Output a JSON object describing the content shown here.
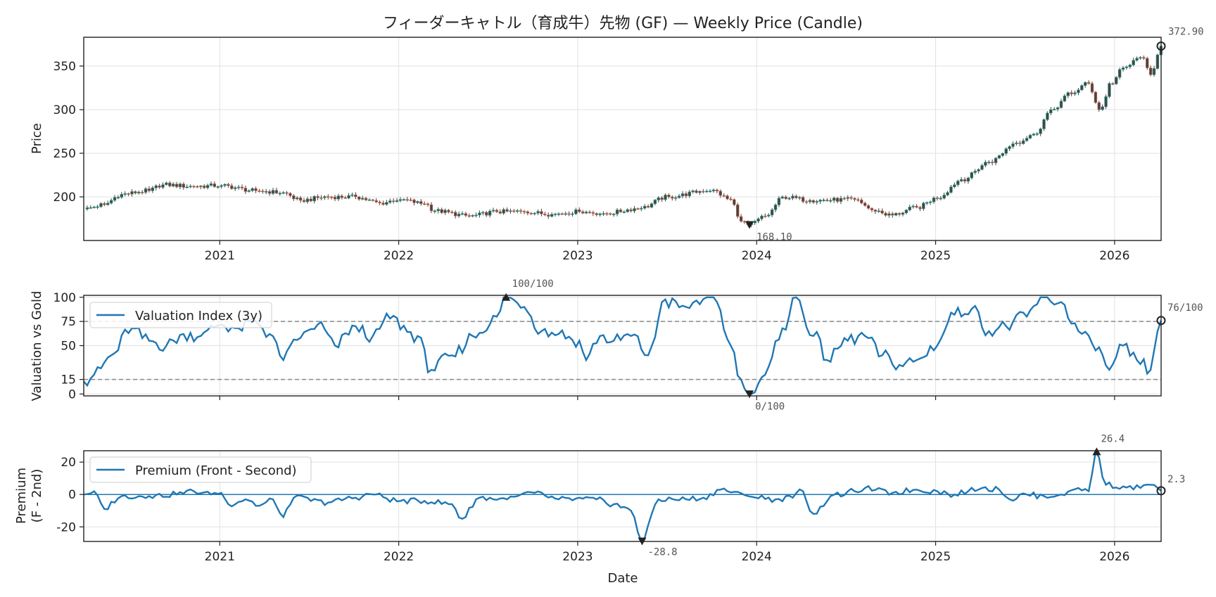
{
  "chart_data": [
    {
      "type": "candlestick",
      "title": "フィーダーキャトル（育成牛）先物 (GF) — Weekly Price (Candle)",
      "ylabel": "Price",
      "xlabel": "",
      "x_range": [
        2020.24,
        2026.26
      ],
      "ylim": [
        150,
        383
      ],
      "y_ticks": [
        200,
        250,
        300,
        350
      ],
      "x_ticks": [
        "2021",
        "2022",
        "2023",
        "2024",
        "2025",
        "2026"
      ],
      "grid": true,
      "anchors": [
        [
          2020.24,
          186
        ],
        [
          2020.35,
          191
        ],
        [
          2020.45,
          203
        ],
        [
          2020.6,
          207
        ],
        [
          2020.68,
          214
        ],
        [
          2020.85,
          212
        ],
        [
          2021.0,
          213
        ],
        [
          2021.2,
          207
        ],
        [
          2021.35,
          205
        ],
        [
          2021.45,
          196
        ],
        [
          2021.6,
          200
        ],
        [
          2021.75,
          200
        ],
        [
          2021.9,
          193
        ],
        [
          2022.0,
          197
        ],
        [
          2022.15,
          192
        ],
        [
          2022.2,
          184
        ],
        [
          2022.4,
          178
        ],
        [
          2022.55,
          183
        ],
        [
          2022.7,
          183
        ],
        [
          2022.85,
          180
        ],
        [
          2023.0,
          183
        ],
        [
          2023.15,
          181
        ],
        [
          2023.35,
          187
        ],
        [
          2023.5,
          200
        ],
        [
          2023.75,
          208
        ],
        [
          2023.85,
          197
        ],
        [
          2023.92,
          172
        ],
        [
          2023.96,
          168.1
        ],
        [
          2024.05,
          178
        ],
        [
          2024.15,
          200
        ],
        [
          2024.3,
          196
        ],
        [
          2024.55,
          197
        ],
        [
          2024.65,
          185
        ],
        [
          2024.75,
          179
        ],
        [
          2024.9,
          188
        ],
        [
          2025.0,
          198
        ],
        [
          2025.15,
          220
        ],
        [
          2025.3,
          240
        ],
        [
          2025.45,
          262
        ],
        [
          2025.55,
          272
        ],
        [
          2025.65,
          300
        ],
        [
          2025.75,
          318
        ],
        [
          2025.85,
          330
        ],
        [
          2025.92,
          300
        ],
        [
          2025.98,
          330
        ],
        [
          2026.05,
          348
        ],
        [
          2026.15,
          360
        ],
        [
          2026.2,
          340
        ],
        [
          2026.26,
          372.9
        ]
      ],
      "annotations": [
        {
          "label": "168.10",
          "x": 2023.96,
          "y": 168.1,
          "marker": "min"
        },
        {
          "label": "372.90",
          "x": 2026.26,
          "y": 372.9,
          "marker": "last"
        }
      ]
    },
    {
      "type": "line",
      "series_name": "Valuation Index (3y)",
      "ylabel": "Valuation vs Gold",
      "x_range": [
        2020.24,
        2026.26
      ],
      "ylim": [
        -2,
        102
      ],
      "y_ticks": [
        0,
        15,
        50,
        75,
        100
      ],
      "reference_lines": [
        75,
        15
      ],
      "legend": "upper-left",
      "grid": true,
      "anchors": [
        [
          2020.24,
          13
        ],
        [
          2020.3,
          20
        ],
        [
          2020.4,
          40
        ],
        [
          2020.5,
          68
        ],
        [
          2020.6,
          55
        ],
        [
          2020.7,
          50
        ],
        [
          2020.8,
          62
        ],
        [
          2020.9,
          60
        ],
        [
          2021.0,
          72
        ],
        [
          2021.1,
          68
        ],
        [
          2021.2,
          75
        ],
        [
          2021.28,
          62
        ],
        [
          2021.35,
          35
        ],
        [
          2021.45,
          58
        ],
        [
          2021.55,
          72
        ],
        [
          2021.65,
          50
        ],
        [
          2021.75,
          70
        ],
        [
          2021.85,
          60
        ],
        [
          2021.95,
          78
        ],
        [
          2022.1,
          60
        ],
        [
          2022.18,
          25
        ],
        [
          2022.3,
          40
        ],
        [
          2022.42,
          60
        ],
        [
          2022.5,
          72
        ],
        [
          2022.55,
          80
        ],
        [
          2022.6,
          100
        ],
        [
          2022.7,
          90
        ],
        [
          2022.8,
          65
        ],
        [
          2022.9,
          62
        ],
        [
          2023.0,
          55
        ],
        [
          2023.05,
          35
        ],
        [
          2023.12,
          60
        ],
        [
          2023.2,
          55
        ],
        [
          2023.3,
          60
        ],
        [
          2023.4,
          40
        ],
        [
          2023.48,
          95
        ],
        [
          2023.6,
          90
        ],
        [
          2023.7,
          98
        ],
        [
          2023.78,
          95
        ],
        [
          2023.85,
          50
        ],
        [
          2023.92,
          15
        ],
        [
          2023.96,
          0
        ],
        [
          2024.05,
          20
        ],
        [
          2024.15,
          68
        ],
        [
          2024.22,
          100
        ],
        [
          2024.32,
          60
        ],
        [
          2024.4,
          35
        ],
        [
          2024.5,
          55
        ],
        [
          2024.6,
          60
        ],
        [
          2024.7,
          40
        ],
        [
          2024.8,
          30
        ],
        [
          2024.9,
          35
        ],
        [
          2025.0,
          50
        ],
        [
          2025.1,
          82
        ],
        [
          2025.2,
          88
        ],
        [
          2025.3,
          65
        ],
        [
          2025.4,
          70
        ],
        [
          2025.5,
          80
        ],
        [
          2025.6,
          100
        ],
        [
          2025.7,
          95
        ],
        [
          2025.8,
          65
        ],
        [
          2025.9,
          45
        ],
        [
          2025.98,
          25
        ],
        [
          2026.05,
          50
        ],
        [
          2026.12,
          35
        ],
        [
          2026.2,
          25
        ],
        [
          2026.26,
          76
        ]
      ],
      "annotations": [
        {
          "label": "100/100",
          "x": 2022.6,
          "y": 100,
          "marker": "max"
        },
        {
          "label": "0/100",
          "x": 2023.96,
          "y": 0,
          "marker": "min"
        },
        {
          "label": "76/100",
          "x": 2026.26,
          "y": 76,
          "marker": "last"
        }
      ]
    },
    {
      "type": "line",
      "series_name": "Premium (Front - Second)",
      "ylabel": "Premium",
      "ylabel2": "(F - 2nd)",
      "xlabel": "Date",
      "x_range": [
        2020.24,
        2026.26
      ],
      "ylim": [
        -29,
        27
      ],
      "y_ticks": [
        -20,
        0,
        20
      ],
      "x_ticks": [
        "2021",
        "2022",
        "2023",
        "2024",
        "2025",
        "2026"
      ],
      "reference_lines": [
        0
      ],
      "legend": "upper-left",
      "grid": true,
      "anchors": [
        [
          2020.24,
          0
        ],
        [
          2020.3,
          2
        ],
        [
          2020.35,
          -9
        ],
        [
          2020.45,
          -1
        ],
        [
          2020.6,
          -1
        ],
        [
          2020.75,
          0
        ],
        [
          2020.85,
          2
        ],
        [
          2020.95,
          0
        ],
        [
          2021.0,
          1
        ],
        [
          2021.05,
          -6
        ],
        [
          2021.15,
          -3
        ],
        [
          2021.22,
          -7
        ],
        [
          2021.3,
          -3
        ],
        [
          2021.35,
          -14
        ],
        [
          2021.42,
          -2
        ],
        [
          2021.6,
          -5
        ],
        [
          2021.75,
          -2
        ],
        [
          2021.85,
          0
        ],
        [
          2022.0,
          -4
        ],
        [
          2022.15,
          -4
        ],
        [
          2022.3,
          -6
        ],
        [
          2022.35,
          -15
        ],
        [
          2022.45,
          -2
        ],
        [
          2022.6,
          -3
        ],
        [
          2022.75,
          1
        ],
        [
          2022.9,
          -3
        ],
        [
          2023.1,
          -3
        ],
        [
          2023.2,
          -6
        ],
        [
          2023.3,
          -10
        ],
        [
          2023.36,
          -28.8
        ],
        [
          2023.45,
          -3
        ],
        [
          2023.6,
          -3
        ],
        [
          2023.7,
          -2
        ],
        [
          2023.8,
          3
        ],
        [
          2023.95,
          -1
        ],
        [
          2024.1,
          -3
        ],
        [
          2024.2,
          -2
        ],
        [
          2024.25,
          2
        ],
        [
          2024.32,
          -12
        ],
        [
          2024.42,
          -1
        ],
        [
          2024.55,
          2
        ],
        [
          2024.6,
          4
        ],
        [
          2024.75,
          1
        ],
        [
          2024.9,
          3
        ],
        [
          2025.0,
          2
        ],
        [
          2025.1,
          0
        ],
        [
          2025.25,
          4
        ],
        [
          2025.35,
          3
        ],
        [
          2025.42,
          -3
        ],
        [
          2025.5,
          0
        ],
        [
          2025.6,
          -1
        ],
        [
          2025.7,
          0
        ],
        [
          2025.8,
          4
        ],
        [
          2025.85,
          2
        ],
        [
          2025.9,
          26.4
        ],
        [
          2025.95,
          6
        ],
        [
          2026.05,
          5
        ],
        [
          2026.15,
          4
        ],
        [
          2026.2,
          6
        ],
        [
          2026.26,
          2.3
        ]
      ],
      "annotations": [
        {
          "label": "26.4",
          "x": 2025.9,
          "y": 26.4,
          "marker": "max"
        },
        {
          "label": "-28.8",
          "x": 2023.36,
          "y": -28.8,
          "marker": "min"
        },
        {
          "label": "2.3",
          "x": 2026.26,
          "y": 2.3,
          "marker": "last"
        }
      ]
    }
  ],
  "colors": {
    "line": "#1f77b4",
    "candle_up": "#2a9d8f",
    "candle_down": "#e76f51",
    "candle_body": "#444444",
    "ref_line": "#888888",
    "grid": "#e1e1e1",
    "marker": "#222222"
  }
}
